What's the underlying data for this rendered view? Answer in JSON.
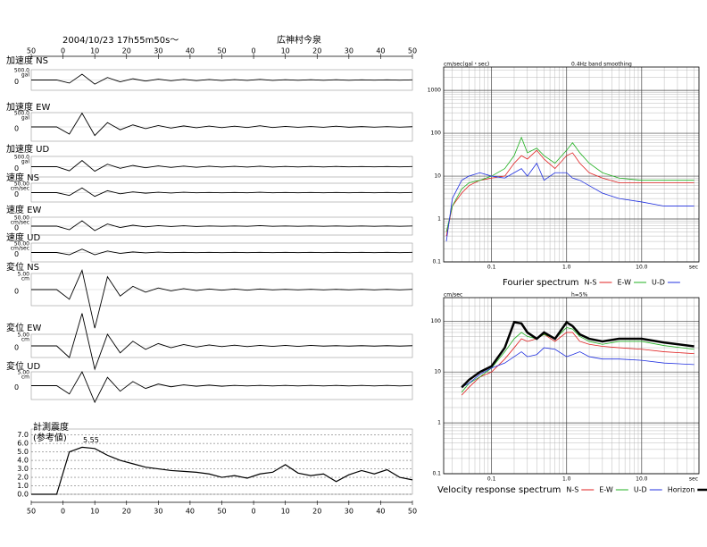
{
  "header": {
    "datetime": "2004/10/23  17h55m50s～",
    "station": "広神村今泉"
  },
  "chart_data": [
    {
      "type": "traces",
      "x": [
        0,
        4,
        8,
        12,
        16,
        20,
        24,
        28,
        32,
        36,
        40,
        44,
        48,
        52,
        56,
        60,
        64,
        68,
        72,
        76,
        80,
        84,
        88,
        92,
        96,
        100,
        104,
        108,
        112,
        116,
        120
      ],
      "xlim": [
        0,
        120
      ],
      "xticks": [
        {
          "value": 0,
          "label": "50"
        },
        {
          "value": 10,
          "label": "0"
        },
        {
          "value": 20,
          "label": "10"
        },
        {
          "value": 30,
          "label": "20"
        },
        {
          "value": 40,
          "label": "30"
        },
        {
          "value": 50,
          "label": "40"
        },
        {
          "value": 60,
          "label": "50"
        },
        {
          "value": 70,
          "label": "0"
        },
        {
          "value": 80,
          "label": "10"
        },
        {
          "value": 90,
          "label": "20"
        },
        {
          "value": 100,
          "label": "30"
        },
        {
          "value": 110,
          "label": "40"
        },
        {
          "value": 120,
          "label": "50"
        }
      ],
      "traces": [
        {
          "name": "加速度 NS",
          "unit": "gal",
          "scale": {
            "value": 500,
            "label": "500.0"
          },
          "zero": 0,
          "values": [
            0,
            0,
            0,
            -150,
            280,
            -200,
            120,
            -90,
            60,
            -50,
            40,
            -35,
            30,
            -30,
            25,
            -25,
            20,
            -20,
            30,
            -20,
            15,
            -15,
            15,
            -12,
            12,
            -12,
            10,
            -10,
            10,
            -8,
            8
          ]
        },
        {
          "name": "加速度 EW",
          "unit": "gal",
          "scale": {
            "value": 500,
            "label": "500.0"
          },
          "zero": 0,
          "values": [
            0,
            0,
            0,
            -250,
            480,
            -300,
            150,
            -100,
            70,
            -60,
            50,
            -40,
            35,
            -30,
            30,
            -25,
            25,
            -20,
            40,
            -20,
            18,
            -15,
            15,
            -15,
            25,
            -12,
            12,
            -10,
            10,
            -10,
            8
          ]
        },
        {
          "name": "加速度 UD",
          "unit": "gal",
          "scale": {
            "value": 500,
            "label": "500.0"
          },
          "zero": 0,
          "values": [
            0,
            0,
            0,
            -200,
            300,
            -220,
            120,
            -80,
            60,
            -50,
            40,
            -35,
            30,
            -30,
            25,
            -20,
            20,
            -20,
            25,
            -18,
            15,
            -15,
            15,
            -12,
            12,
            -10,
            10,
            -10,
            8,
            -8,
            8
          ]
        },
        {
          "name": "速度 NS",
          "unit": "cm/sec",
          "scale": {
            "value": 50,
            "label": "50.00"
          },
          "zero": 0,
          "values": [
            0,
            0,
            0,
            -15,
            25,
            -20,
            10,
            -6,
            4,
            -3,
            2,
            -2,
            2,
            -1,
            1,
            -1,
            1,
            -1,
            2,
            -1,
            1,
            -1,
            1,
            -1,
            1,
            -1,
            1,
            -1,
            1,
            -1,
            1
          ]
        },
        {
          "name": "速度 EW",
          "unit": "cm/sec",
          "scale": {
            "value": 50,
            "label": "50.00"
          },
          "zero": 0,
          "values": [
            0,
            0,
            0,
            -20,
            30,
            -25,
            12,
            -8,
            5,
            -4,
            3,
            -2,
            2,
            -2,
            1,
            -1,
            1,
            -1,
            3,
            -1,
            1,
            -1,
            1,
            -1,
            1,
            -1,
            1,
            -1,
            1,
            -1,
            1
          ]
        },
        {
          "name": "速度 UD",
          "unit": "cm/sec",
          "scale": {
            "value": 50,
            "label": "50.00"
          },
          "zero": 0,
          "values": [
            0,
            0,
            0,
            -12,
            18,
            -12,
            8,
            -5,
            3,
            -2,
            2,
            -1,
            1,
            -1,
            1,
            -1,
            1,
            -1,
            1,
            -1,
            1,
            -1,
            1,
            -1,
            1,
            -1,
            1,
            -1,
            1,
            -1,
            1
          ]
        },
        {
          "name": "変位 NS",
          "unit": "cm",
          "scale": {
            "value": 5,
            "label": "5.00"
          },
          "zero": 0,
          "values": [
            0,
            0,
            0,
            -3,
            6,
            -12,
            4,
            -2,
            1,
            -0.8,
            0.5,
            -0.4,
            0.3,
            -0.3,
            0.2,
            -0.2,
            0.2,
            -0.2,
            0.2,
            -0.1,
            0.1,
            -0.1,
            0.1,
            -0.1,
            0.1,
            -0.1,
            0.1,
            -0.1,
            0.1,
            -0.1,
            0.1
          ]
        },
        {
          "name": "変位 EW",
          "unit": "cm",
          "scale": {
            "value": 5,
            "label": "5.00"
          },
          "zero": 0,
          "values": [
            0,
            0,
            0,
            -5,
            14,
            -10,
            5,
            -3,
            2,
            -1.5,
            1,
            -0.8,
            0.6,
            -0.5,
            0.4,
            -0.3,
            0.3,
            -0.3,
            0.2,
            -0.2,
            0.2,
            -0.2,
            0.2,
            -0.1,
            0.1,
            -0.1,
            0.1,
            -0.1,
            0.1,
            -0.1,
            0.1
          ]
        },
        {
          "name": "変位 UD",
          "unit": "cm",
          "scale": {
            "value": 5,
            "label": "5.00"
          },
          "zero": 0,
          "values": [
            0,
            0,
            0,
            -3,
            5,
            -6,
            3,
            -2,
            1.5,
            -1,
            0.6,
            -0.4,
            0.3,
            -0.2,
            0.2,
            -0.2,
            0.1,
            -0.1,
            0.1,
            -0.1,
            0.1,
            -0.1,
            0.1,
            -0.1,
            0.1,
            -0.1,
            0.1,
            -0.1,
            0.1,
            -0.1,
            0.1
          ]
        }
      ]
    },
    {
      "type": "step",
      "title": "計測震度",
      "subtitle": "(参考値)",
      "x": [
        0,
        4,
        8,
        12,
        16,
        20,
        24,
        28,
        32,
        36,
        40,
        44,
        48,
        52,
        56,
        60,
        64,
        68,
        72,
        76,
        80,
        84,
        88,
        92,
        96,
        100,
        104,
        108,
        112,
        116,
        120
      ],
      "values": [
        0,
        0,
        0,
        5.0,
        5.55,
        5.4,
        4.6,
        4.0,
        3.6,
        3.2,
        3.0,
        2.8,
        2.7,
        2.6,
        2.4,
        2.0,
        2.2,
        1.9,
        2.4,
        2.6,
        3.5,
        2.5,
        2.2,
        2.4,
        1.5,
        2.3,
        2.8,
        2.4,
        2.9,
        2.0,
        1.7
      ],
      "xlim": [
        0,
        120
      ],
      "xticks": [
        {
          "value": 0,
          "label": "50"
        },
        {
          "value": 10,
          "label": "0"
        },
        {
          "value": 20,
          "label": "10"
        },
        {
          "value": 30,
          "label": "20"
        },
        {
          "value": 40,
          "label": "30"
        },
        {
          "value": 50,
          "label": "40"
        },
        {
          "value": 60,
          "label": "50"
        },
        {
          "value": 70,
          "label": "0"
        },
        {
          "value": 80,
          "label": "10"
        },
        {
          "value": 90,
          "label": "20"
        },
        {
          "value": 100,
          "label": "30"
        },
        {
          "value": 110,
          "label": "40"
        },
        {
          "value": 120,
          "label": "50"
        }
      ],
      "ylim": [
        0,
        7.7
      ],
      "yticks": [
        {
          "value": 0,
          "label": "0.0"
        },
        {
          "value": 1,
          "label": "1.0"
        },
        {
          "value": 2,
          "label": "2.0"
        },
        {
          "value": 3,
          "label": "3.0"
        },
        {
          "value": 4,
          "label": "4.0"
        },
        {
          "value": 5,
          "label": "5.0"
        },
        {
          "value": 6,
          "label": "6.0"
        },
        {
          "value": 7,
          "label": "7.0"
        }
      ]
    },
    {
      "type": "line",
      "log": true,
      "y_unit": "cm/sec(gal・sec)",
      "subtitle": "0.4Hz band smoothing",
      "x_unit": "sec",
      "legend_title": "Fourier spectrum",
      "x": [
        0.025,
        0.03,
        0.04,
        0.05,
        0.07,
        0.1,
        0.15,
        0.2,
        0.25,
        0.3,
        0.4,
        0.5,
        0.7,
        1.0,
        1.2,
        1.5,
        2,
        3,
        5,
        10,
        20,
        50
      ],
      "xlim": [
        0.023,
        58
      ],
      "ylim": [
        0.1,
        3500
      ],
      "xticks": [
        0.1,
        {
          "value": 1,
          "label": "1.0"
        },
        {
          "value": 10,
          "label": "10.0"
        }
      ],
      "yticks": [
        0.1,
        1,
        10,
        100,
        1000
      ],
      "series": [
        {
          "name": "N-S",
          "color": "#e02020",
          "values": [
            0.4,
            2,
            4,
            6,
            8,
            9,
            10,
            20,
            30,
            25,
            40,
            25,
            15,
            30,
            35,
            20,
            12,
            9,
            7,
            7,
            7,
            7
          ]
        },
        {
          "name": "E-W",
          "color": "#20b020",
          "values": [
            0.5,
            2,
            5,
            7,
            8,
            10,
            15,
            30,
            80,
            35,
            45,
            30,
            20,
            40,
            60,
            35,
            20,
            12,
            9,
            8,
            8,
            8
          ]
        },
        {
          "name": "U-D",
          "color": "#2030e0",
          "values": [
            0.3,
            3,
            8,
            10,
            12,
            10,
            9,
            12,
            15,
            10,
            20,
            8,
            12,
            12,
            9,
            8,
            6,
            4,
            3,
            2.5,
            2,
            2
          ]
        }
      ]
    },
    {
      "type": "line",
      "log": true,
      "y_unit": "cm/sec",
      "subtitle": "h=5%",
      "x_unit": "sec",
      "legend_title": "Velocity response spectrum",
      "x": [
        0.04,
        0.05,
        0.07,
        0.1,
        0.15,
        0.2,
        0.25,
        0.3,
        0.4,
        0.5,
        0.7,
        1.0,
        1.2,
        1.5,
        2,
        3,
        5,
        10,
        20,
        50
      ],
      "xlim": [
        0.023,
        58
      ],
      "ylim": [
        0.1,
        290
      ],
      "xticks": [
        0.1,
        {
          "value": 1,
          "label": "1.0"
        },
        {
          "value": 10,
          "label": "10.0"
        }
      ],
      "yticks": [
        0.1,
        1,
        10,
        100
      ],
      "series": [
        {
          "name": "N-S",
          "color": "#e02020",
          "values": [
            3.5,
            5,
            8,
            10,
            18,
            30,
            45,
            40,
            45,
            55,
            40,
            60,
            60,
            40,
            35,
            32,
            30,
            28,
            25,
            23
          ]
        },
        {
          "name": "E-W",
          "color": "#20b020",
          "values": [
            4,
            6,
            8,
            12,
            25,
            45,
            60,
            50,
            45,
            55,
            45,
            75,
            70,
            50,
            40,
            35,
            40,
            40,
            33,
            28
          ]
        },
        {
          "name": "U-D",
          "color": "#2030e0",
          "values": [
            5,
            6,
            9,
            12,
            15,
            20,
            25,
            20,
            22,
            30,
            28,
            20,
            22,
            25,
            20,
            18,
            18,
            17,
            15,
            14
          ]
        },
        {
          "name": "Horizon",
          "color": "#000000",
          "linewidth": 2.5,
          "values": [
            5,
            7,
            10,
            13,
            30,
            95,
            90,
            60,
            45,
            60,
            45,
            95,
            80,
            55,
            45,
            40,
            45,
            45,
            38,
            32
          ]
        }
      ]
    }
  ]
}
